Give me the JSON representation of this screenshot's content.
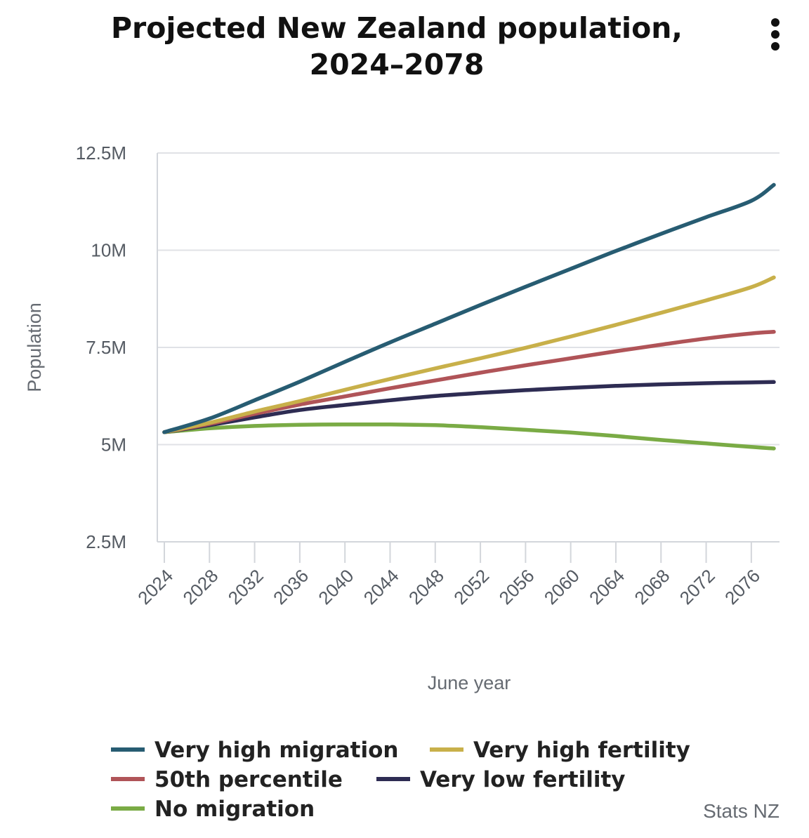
{
  "title_line1": "Projected New Zealand population,",
  "title_line2": "2024–2078",
  "credit": "Stats NZ",
  "menu_icon": "more-vertical-icon",
  "chart_data": {
    "type": "line",
    "xlabel": "June year",
    "ylabel": "Population",
    "x_ticks": [
      2024,
      2028,
      2032,
      2036,
      2040,
      2044,
      2048,
      2052,
      2056,
      2060,
      2064,
      2068,
      2072,
      2076
    ],
    "x_range": [
      2024,
      2078
    ],
    "y_ticks": [
      {
        "value": 2.5,
        "label": "2.5M"
      },
      {
        "value": 5,
        "label": "5M"
      },
      {
        "value": 7.5,
        "label": "7.5M"
      },
      {
        "value": 10,
        "label": "10M"
      },
      {
        "value": 12.5,
        "label": "12.5M"
      }
    ],
    "ylim": [
      2.5,
      12.5
    ],
    "y_unit": "millions",
    "grid": "horizontal",
    "legend_position": "bottom",
    "x": [
      2024,
      2028,
      2032,
      2036,
      2040,
      2044,
      2048,
      2052,
      2056,
      2060,
      2064,
      2068,
      2072,
      2076,
      2078
    ],
    "series": [
      {
        "name": "Very high migration",
        "color": "#275c72",
        "values": [
          5.32,
          5.67,
          6.14,
          6.62,
          7.13,
          7.63,
          8.11,
          8.59,
          9.06,
          9.52,
          9.98,
          10.42,
          10.85,
          11.27,
          11.68
        ]
      },
      {
        "name": "Very high fertility",
        "color": "#c8b04a",
        "values": [
          5.32,
          5.56,
          5.85,
          6.12,
          6.41,
          6.69,
          6.96,
          7.22,
          7.49,
          7.78,
          8.08,
          8.39,
          8.71,
          9.05,
          9.3
        ]
      },
      {
        "name": "50th percentile",
        "color": "#b05458",
        "values": [
          5.32,
          5.53,
          5.79,
          6.03,
          6.24,
          6.45,
          6.65,
          6.85,
          7.04,
          7.22,
          7.4,
          7.57,
          7.73,
          7.86,
          7.9
        ]
      },
      {
        "name": "Very low fertility",
        "color": "#2e2c53",
        "values": [
          5.32,
          5.5,
          5.7,
          5.89,
          6.02,
          6.14,
          6.25,
          6.33,
          6.4,
          6.46,
          6.51,
          6.55,
          6.58,
          6.6,
          6.61
        ]
      },
      {
        "name": "No migration",
        "color": "#7aab45",
        "values": [
          5.32,
          5.42,
          5.48,
          5.51,
          5.52,
          5.52,
          5.5,
          5.45,
          5.38,
          5.31,
          5.22,
          5.12,
          5.03,
          4.94,
          4.9
        ]
      }
    ]
  }
}
